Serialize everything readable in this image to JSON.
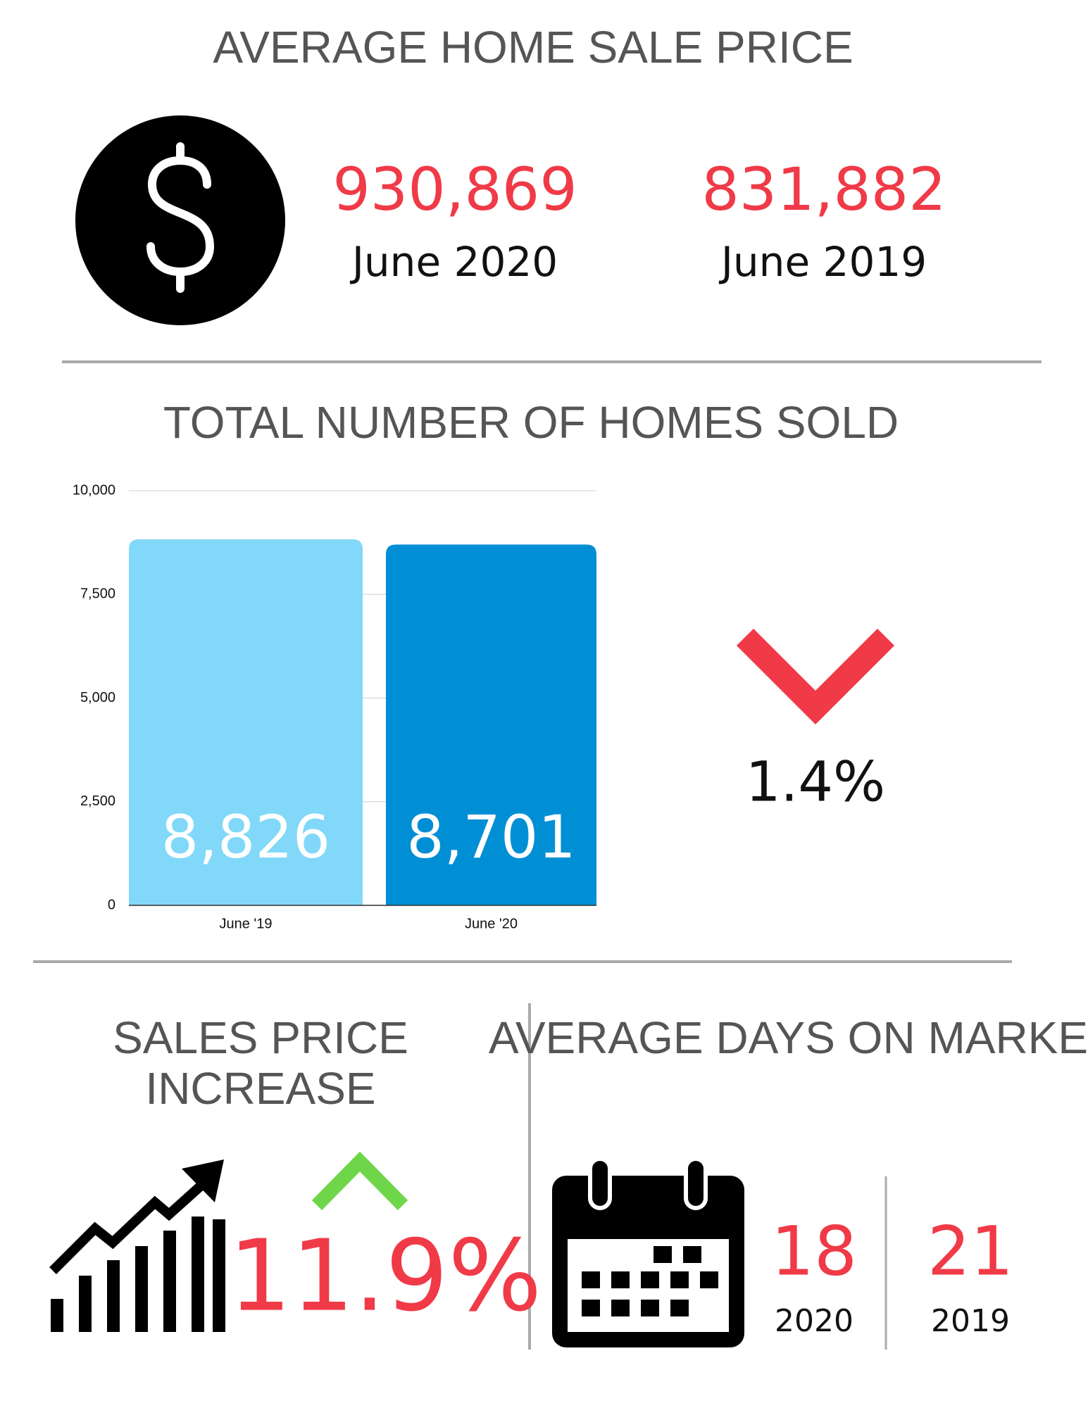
{
  "price": {
    "title": "AVERAGE HOME SALE PRICE",
    "items": [
      {
        "value": "930,869",
        "label": "June 2020"
      },
      {
        "value": "831,882",
        "label": "June 2019"
      }
    ]
  },
  "chart_data": {
    "type": "bar",
    "title": "TOTAL NUMBER OF HOMES SOLD",
    "categories": [
      "June '19",
      "June '20"
    ],
    "values": [
      8826,
      8701
    ],
    "value_labels": [
      "8,826",
      "8,701"
    ],
    "colors": [
      "#81d8f9",
      "#008fd5"
    ],
    "ylim": [
      0,
      10000
    ],
    "yticks": [
      0,
      {
        "value": 2500,
        "label": "2,500"
      },
      {
        "value": 5000,
        "label": "5,000"
      },
      {
        "value": 7500,
        "label": "7,500"
      },
      {
        "value": 10000,
        "label": "10,000"
      }
    ],
    "grid": true,
    "change": "1.4%"
  },
  "sales_increase": {
    "title": "SALES PRICE INCREASE",
    "value": "11.9%"
  },
  "days_on_market": {
    "title": "AVERAGE DAYS ON MARKET",
    "items": [
      {
        "value": "18",
        "label": "2020"
      },
      {
        "value": "21",
        "label": "2019"
      }
    ]
  }
}
